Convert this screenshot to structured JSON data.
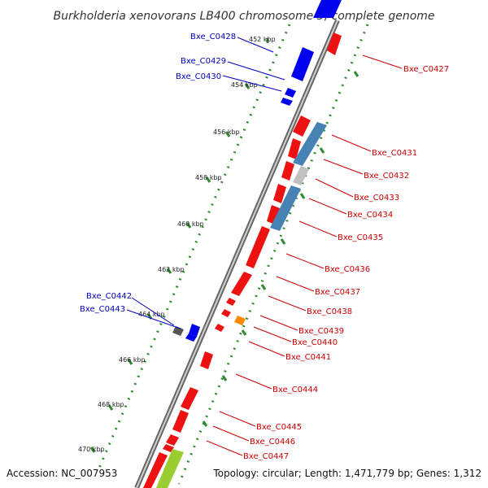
{
  "title": "Burkholderia xenovorans LB400 chromosome 3, complete genome",
  "footer": {
    "accession": "Accession: NC_007953",
    "topology": "Topology: circular; Length: 1,471,779 bp; Genes: 1,312"
  },
  "colors": {
    "forward_gene": "#ee1111",
    "reverse_gene": "#0000ee",
    "blue_feature": "#4682b4",
    "gray_feature": "#c0c0c0",
    "orange_feature": "#ff8800",
    "green_feature": "#9acd32",
    "dark_feature": "#555555",
    "tick": "#2e8b2e",
    "backbone": "#888888"
  },
  "ticks": [
    {
      "label": "452 kbp"
    },
    {
      "label": "454 kbp"
    },
    {
      "label": "456 kbp"
    },
    {
      "label": "458 kbp"
    },
    {
      "label": "460 kbp"
    },
    {
      "label": "462 kbp"
    },
    {
      "label": "464 kbp"
    },
    {
      "label": "466 kbp"
    },
    {
      "label": "468 kbp"
    },
    {
      "label": "470 kbp"
    }
  ],
  "genes_left": [
    {
      "label": "Bxe_C0428"
    },
    {
      "label": "Bxe_C0429"
    },
    {
      "label": "Bxe_C0430"
    },
    {
      "label": "Bxe_C0442"
    },
    {
      "label": "Bxe_C0443"
    }
  ],
  "genes_right": [
    {
      "label": "Bxe_C0427"
    },
    {
      "label": "Bxe_C0431"
    },
    {
      "label": "Bxe_C0432"
    },
    {
      "label": "Bxe_C0433"
    },
    {
      "label": "Bxe_C0434"
    },
    {
      "label": "Bxe_C0435"
    },
    {
      "label": "Bxe_C0436"
    },
    {
      "label": "Bxe_C0437"
    },
    {
      "label": "Bxe_C0438"
    },
    {
      "label": "Bxe_C0439"
    },
    {
      "label": "Bxe_C0440"
    },
    {
      "label": "Bxe_C0441"
    },
    {
      "label": "Bxe_C0444"
    },
    {
      "label": "Bxe_C0445"
    },
    {
      "label": "Bxe_C0446"
    },
    {
      "label": "Bxe_C0447"
    }
  ]
}
